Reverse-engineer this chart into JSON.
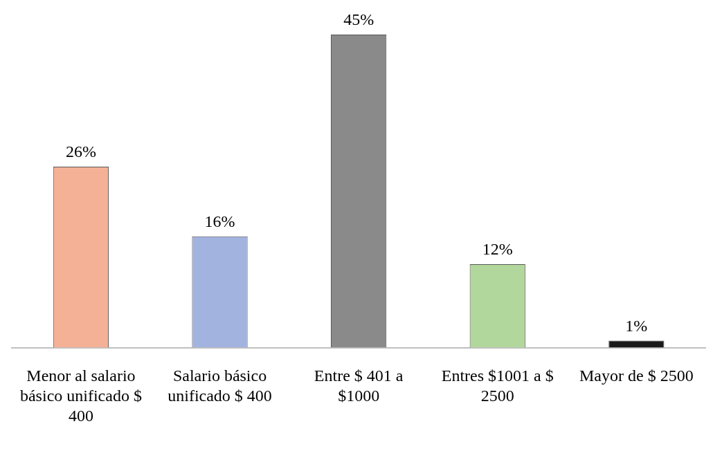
{
  "chart_data": {
    "type": "bar",
    "categories": [
      "Menor al salario básico unificado $ 400",
      "Salario básico unificado $ 400",
      "Entre $ 401 a $1000",
      "Entres $1001 a $ 2500",
      "Mayor de $ 2500"
    ],
    "values": [
      26,
      16,
      45,
      12,
      1
    ],
    "colors": [
      "#f4b196",
      "#a3b3e0",
      "#8a8a8a",
      "#b2d79c",
      "#1a1a1a"
    ],
    "value_labels": [
      "26%",
      "16%",
      "45%",
      "12%",
      "1%"
    ],
    "grid": false,
    "legend": false
  }
}
